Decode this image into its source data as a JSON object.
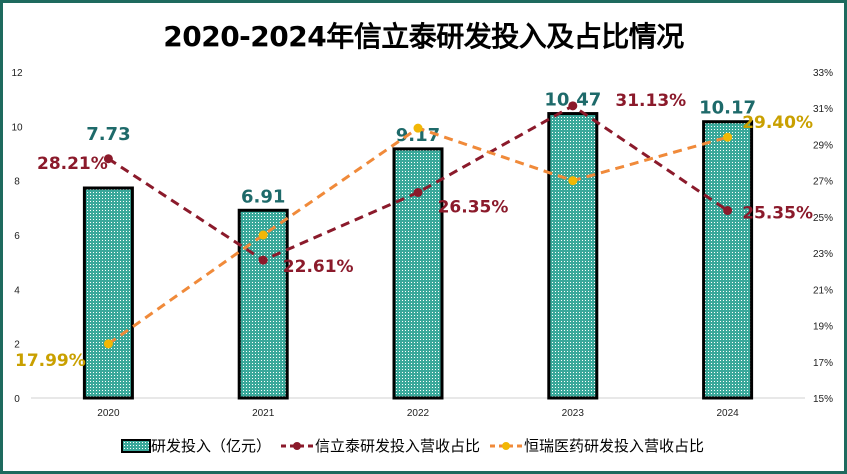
{
  "chart_data": {
    "type": "bar+line",
    "title": "2020-2024年信立泰研发投入及占比情况",
    "categories": [
      "2020",
      "2021",
      "2022",
      "2023",
      "2024"
    ],
    "y_left": {
      "range": [
        0,
        12
      ],
      "ticks": [
        "0",
        "2",
        "4",
        "6",
        "8",
        "10",
        "12"
      ]
    },
    "y_right": {
      "range": [
        15,
        33
      ],
      "ticks": [
        "15%",
        "17%",
        "19%",
        "21%",
        "23%",
        "25%",
        "27%",
        "29%",
        "31%",
        "33%"
      ]
    },
    "grid": false,
    "legend_position": "bottom",
    "series": [
      {
        "name": "研发投入（亿元）",
        "type": "bar",
        "axis": "left",
        "values": [
          7.73,
          6.91,
          9.17,
          10.47,
          10.17
        ],
        "labels": [
          "7.73",
          "6.91",
          "9.17",
          "10.47",
          "10.17"
        ],
        "color": "#3aa89a"
      },
      {
        "name": "信立泰研发投入营收占比",
        "type": "line",
        "axis": "right",
        "values": [
          28.21,
          22.61,
          26.35,
          31.13,
          25.35
        ],
        "labels": [
          "28.21%",
          "22.61%",
          "26.35%",
          "31.13%",
          "25.35%"
        ],
        "color": "#8b1a2b"
      },
      {
        "name": "恒瑞医药研发投入营收占比",
        "type": "line",
        "axis": "right",
        "values": [
          17.99,
          24.0,
          29.9,
          27.0,
          29.4
        ],
        "labels": [
          "17.99%",
          "",
          "",
          "",
          "29.40%"
        ],
        "color": "#f08a3a",
        "marker_color": "#f2b705"
      }
    ]
  }
}
